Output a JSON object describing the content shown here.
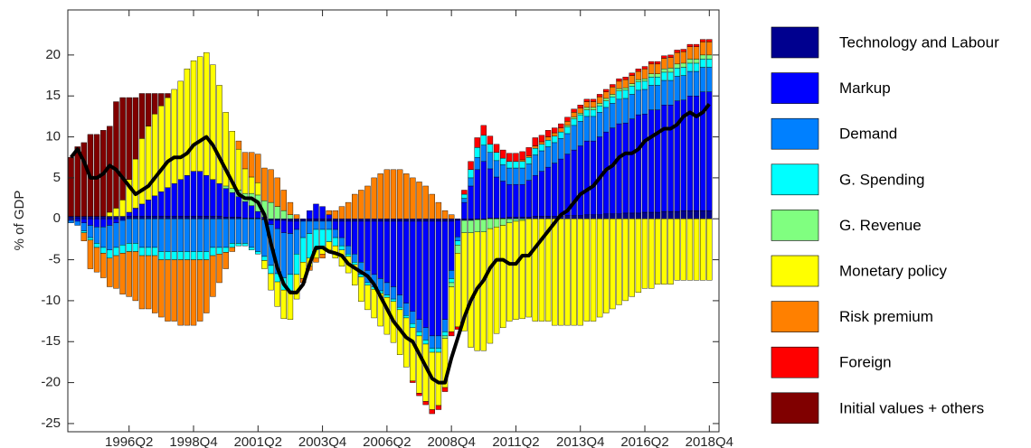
{
  "chart_data": {
    "type": "stacked-bar",
    "y_label": "% of GDP",
    "categories": [
      null,
      null,
      null,
      null,
      null,
      null,
      null,
      null,
      null,
      "1996Q2",
      null,
      null,
      null,
      null,
      null,
      null,
      null,
      null,
      null,
      "1998Q4",
      null,
      null,
      null,
      null,
      null,
      null,
      null,
      null,
      null,
      "2001Q2",
      null,
      null,
      null,
      null,
      null,
      null,
      null,
      null,
      null,
      "2003Q4",
      null,
      null,
      null,
      null,
      null,
      null,
      null,
      null,
      null,
      "2006Q2",
      null,
      null,
      null,
      null,
      null,
      null,
      null,
      null,
      null,
      "2008Q4",
      null,
      null,
      null,
      null,
      null,
      null,
      null,
      null,
      null,
      "2011Q2",
      null,
      null,
      null,
      null,
      null,
      null,
      null,
      null,
      null,
      "2013Q4",
      null,
      null,
      null,
      null,
      null,
      null,
      null,
      null,
      null,
      "2016Q2",
      null,
      null,
      null,
      null,
      null,
      null,
      null,
      null,
      null,
      "2018Q4"
    ],
    "ylim": [
      -26,
      25.5
    ],
    "yticks": [
      -25,
      -20,
      -15,
      -10,
      -5,
      0,
      5,
      10,
      15,
      20
    ],
    "series": [
      {
        "name": "Technology and Labour",
        "color": "#00008f",
        "values": [
          0.3,
          0.3,
          0.3,
          0.3,
          0.3,
          0.3,
          0.3,
          0.3,
          0.3,
          0.3,
          0.3,
          0.3,
          0.3,
          0.3,
          0.3,
          0.3,
          0.3,
          0.3,
          0.3,
          0.3,
          0.3,
          0.3,
          0.3,
          0.3,
          0.2,
          0.2,
          0.2,
          0.1,
          0.1,
          0.1,
          -0.1,
          -0.2,
          -0.2,
          -0.2,
          -0.3,
          -0.3,
          -0.3,
          -0.3,
          -0.3,
          -0.3,
          -0.3,
          -0.3,
          -0.3,
          -0.3,
          -0.3,
          -0.3,
          -0.3,
          -0.3,
          -0.3,
          -0.3,
          -0.3,
          -0.3,
          -0.3,
          -0.3,
          -0.3,
          -0.3,
          -0.3,
          -0.3,
          -0.3,
          -0.3,
          -0.2,
          -0.2,
          -0.2,
          -0.1,
          -0.1,
          0.1,
          0.1,
          0.1,
          0.2,
          0.2,
          0.2,
          0.2,
          0.3,
          0.3,
          0.3,
          0.3,
          0.3,
          0.4,
          0.4,
          0.4,
          0.5,
          0.5,
          0.5,
          0.6,
          0.6,
          0.6,
          0.7,
          0.7,
          0.7,
          0.8,
          0.8,
          0.8,
          0.9,
          0.9,
          0.9,
          1.0,
          1.0,
          1.0,
          1.0,
          1.0
        ]
      },
      {
        "name": "Markup",
        "color": "#0000ff",
        "values": [
          -0.2,
          -0.3,
          -0.5,
          -0.8,
          -1,
          -1,
          -0.8,
          -0.5,
          -0.2,
          0.5,
          1,
          1.5,
          2,
          2.5,
          3,
          3.5,
          4,
          4.5,
          5,
          5.5,
          5.5,
          5,
          4.5,
          4,
          3.5,
          3,
          2.5,
          2,
          1.5,
          0.8,
          0.2,
          -0.5,
          -1,
          -1.5,
          -1.5,
          -1,
          0,
          1,
          1.8,
          1.5,
          0.5,
          -1,
          -2,
          -3,
          -4,
          -5,
          -6,
          -6.5,
          -7,
          -7.5,
          -8,
          -9,
          -10,
          -11,
          -12,
          -13,
          -14,
          -14,
          -12,
          -6,
          -2,
          2,
          4,
          6,
          7,
          6,
          5,
          4.5,
          4,
          4,
          4,
          4.5,
          5,
          5.5,
          6,
          6.5,
          7,
          7.5,
          8,
          8.5,
          9,
          9,
          9.5,
          10,
          10.5,
          11,
          11,
          11.5,
          12,
          12,
          12.5,
          12.5,
          13,
          13,
          13.5,
          13.5,
          14,
          14,
          14.5,
          14.5
        ]
      },
      {
        "name": "Demand",
        "color": "#0080ff",
        "values": [
          -0.3,
          -0.5,
          -1,
          -1.5,
          -2,
          -2.5,
          -3,
          -3,
          -3,
          -3,
          -3,
          -3.5,
          -3.5,
          -3.5,
          -4,
          -4,
          -4,
          -4,
          -4,
          -4,
          -4,
          -4,
          -3.5,
          -3.5,
          -3.5,
          -3,
          -3,
          -3,
          -3.5,
          -4,
          -4.5,
          -5,
          -5.5,
          -5.5,
          -5,
          -3,
          -2,
          -1.5,
          -1,
          -1,
          -1,
          -1,
          -1,
          -1,
          -1,
          -1.5,
          -1.5,
          -1.5,
          -1.5,
          -1.5,
          -1.5,
          -1.5,
          -1.5,
          -1.5,
          -1.5,
          -1.5,
          -1.5,
          -1.5,
          -1.5,
          -1,
          -0.5,
          0.5,
          1,
          1.5,
          2,
          2,
          2,
          2,
          2,
          2,
          2,
          2,
          2.5,
          2.5,
          2.5,
          2.5,
          2.5,
          2.5,
          3,
          3,
          3,
          3,
          3,
          3,
          3,
          3,
          3,
          3,
          3,
          3,
          3,
          3,
          3,
          3,
          3,
          3,
          3,
          3,
          3,
          3
        ]
      },
      {
        "name": "G. Spending",
        "color": "#00ffff",
        "values": [
          0,
          0,
          -0.2,
          -0.3,
          -0.5,
          -0.7,
          -1,
          -1,
          -1,
          -1,
          -1,
          -1,
          -1,
          -1,
          -1,
          -1,
          -1,
          -1,
          -1,
          -1,
          -1,
          -1,
          -1,
          -0.8,
          -0.6,
          -0.5,
          -0.3,
          -0.3,
          -0.3,
          -0.3,
          -0.5,
          -1,
          -1,
          -1.5,
          -2,
          -2.5,
          -3,
          -3,
          -2.5,
          -2,
          -1.5,
          -1,
          -0.5,
          -0.3,
          -0.3,
          -0.3,
          -0.3,
          -0.3,
          -0.3,
          -0.3,
          -0.3,
          -0.3,
          -0.3,
          -0.5,
          -0.5,
          -0.5,
          -0.5,
          -0.5,
          -0.5,
          -0.5,
          -0.5,
          0.5,
          1,
          1.2,
          1.2,
          1,
          1,
          0.8,
          0.8,
          0.8,
          0.8,
          0.8,
          0.8,
          0.8,
          0.8,
          0.8,
          0.8,
          0.8,
          0.8,
          0.8,
          0.8,
          0.8,
          0.8,
          0.8,
          0.8,
          1,
          1,
          1,
          1,
          1,
          1,
          1,
          1,
          1,
          1,
          1,
          1,
          1,
          1,
          1
        ]
      },
      {
        "name": "G. Revenue",
        "color": "#80ff80",
        "values": [
          0,
          0,
          0,
          0,
          0,
          0,
          0,
          0,
          0,
          0,
          0,
          0,
          0,
          0,
          0,
          0,
          0,
          0,
          0,
          0,
          0,
          0,
          0,
          0,
          0.3,
          0.5,
          0.8,
          1,
          1.5,
          2,
          2,
          2,
          1.5,
          1,
          0.5,
          0,
          0,
          0,
          0,
          0,
          0,
          0,
          0,
          0,
          0,
          0,
          0,
          0,
          0,
          0,
          0,
          0,
          0,
          0,
          0,
          0,
          0,
          0,
          -0.3,
          -0.5,
          -1,
          -1.5,
          -1.5,
          -1.5,
          -1.5,
          -1.2,
          -1,
          -0.8,
          -0.5,
          -0.3,
          -0.2,
          0,
          0,
          0,
          0,
          0,
          0,
          0.2,
          0.2,
          0.2,
          0.3,
          0.3,
          0.3,
          0.3,
          0.3,
          0.3,
          0.3,
          0.3,
          0.3,
          0.3,
          0.4,
          0.4,
          0.4,
          0.5,
          0.5,
          0.5,
          0.5,
          0.5,
          0.5,
          0.5
        ]
      },
      {
        "name": "Monetary policy",
        "color": "#ffff00",
        "values": [
          0,
          0,
          0,
          0,
          0,
          0,
          0.5,
          1,
          2,
          4,
          6,
          8,
          9,
          10,
          10.5,
          11,
          11.5,
          12,
          13,
          13.5,
          14,
          15,
          14,
          12,
          9,
          7,
          5,
          3,
          2,
          1.5,
          -1,
          -2,
          -3,
          -3.5,
          -3.5,
          -3,
          -2,
          -1,
          -1,
          -1,
          -1,
          -1.5,
          -2,
          -2,
          -2.5,
          -3,
          -3,
          -3.5,
          -4,
          -4.5,
          -5,
          -5.5,
          -6,
          -6.5,
          -7,
          -7,
          -7,
          -6.5,
          -6,
          -5.5,
          -9,
          -12,
          -14,
          -14.5,
          -14.5,
          -14,
          -13,
          -12.5,
          -12,
          -12,
          -12,
          -12,
          -12.5,
          -12.5,
          -12.5,
          -13,
          -13,
          -13,
          -13,
          -13,
          -12.5,
          -12.5,
          -12,
          -11.5,
          -11,
          -10.5,
          -10,
          -9.5,
          -9,
          -8.5,
          -8.5,
          -8,
          -8,
          -8,
          -7.5,
          -7.5,
          -7.5,
          -7.5,
          -7.5,
          -7.5
        ]
      },
      {
        "name": "Risk premium",
        "color": "#ff8000",
        "values": [
          0,
          0,
          -1,
          -3.5,
          -3,
          -3,
          -3.5,
          -4,
          -5,
          -5.5,
          -6,
          -6.5,
          -6.5,
          -7,
          -7,
          -7.5,
          -7.5,
          -8,
          -8,
          -8,
          -7.5,
          -6.5,
          -5,
          -3.5,
          -2,
          -0.5,
          1,
          2,
          3,
          3.5,
          4,
          4,
          3.5,
          2.5,
          1.5,
          0.5,
          -0.5,
          -0.5,
          -0.5,
          -0.5,
          0.5,
          1,
          1.5,
          2,
          3,
          3.5,
          4,
          5,
          5.5,
          6,
          6,
          6,
          5.5,
          5,
          4.5,
          4,
          3,
          2,
          1,
          0.5,
          0,
          0,
          0,
          0,
          0,
          0,
          0,
          0,
          0,
          0,
          0.2,
          0.2,
          0.3,
          0.3,
          0.4,
          0.4,
          0.5,
          0.5,
          0.6,
          0.6,
          0.7,
          0.7,
          0.8,
          0.8,
          0.9,
          0.9,
          1,
          1,
          1,
          1.2,
          1.2,
          1.2,
          1.3,
          1.3,
          1.4,
          1.4,
          1.5,
          1.5,
          1.6,
          1.6
        ]
      },
      {
        "name": "Foreign",
        "color": "#ff0000",
        "values": [
          0,
          0,
          0,
          0,
          0,
          0,
          0,
          0,
          0,
          0,
          0,
          0,
          0,
          0,
          0,
          0,
          0,
          0,
          0,
          0,
          0,
          0,
          0,
          0,
          0,
          0,
          0,
          0,
          0,
          0,
          0,
          0,
          0,
          0,
          0,
          0,
          0,
          0,
          0,
          0,
          0,
          0,
          0,
          0,
          0,
          0,
          0,
          0,
          0,
          0,
          0,
          0,
          0,
          -0.2,
          -0.3,
          -0.4,
          -0.5,
          -0.5,
          -0.5,
          -0.5,
          -0.3,
          0.5,
          1,
          1.2,
          1.2,
          1,
          1,
          1,
          1,
          1,
          1,
          1,
          1,
          0.8,
          0.8,
          0.6,
          0.5,
          0.5,
          0.4,
          0.4,
          0.3,
          0.3,
          0.3,
          0.3,
          0.3,
          0.3,
          0.3,
          0.3,
          0.3,
          0.3,
          0.3,
          0.3,
          0.3,
          0.3,
          0.3,
          0.3,
          0.3,
          0.3,
          0.3,
          0.3
        ]
      },
      {
        "name": "Initial values + others",
        "color": "#800000",
        "values": [
          7.2,
          8.5,
          9,
          10,
          10,
          10.5,
          10.5,
          13,
          12.5,
          10,
          7.5,
          5.5,
          4,
          2.5,
          1.5,
          0.5,
          0,
          0,
          0,
          0,
          0,
          0,
          0,
          0,
          0,
          0,
          0,
          0,
          0,
          0,
          0,
          0,
          0,
          0,
          0,
          0,
          0,
          0,
          0,
          0,
          0,
          0,
          0,
          0,
          0,
          0,
          0,
          0,
          0,
          0,
          0,
          0,
          0,
          0,
          0,
          0,
          0,
          0,
          0,
          0,
          0,
          0,
          0,
          0,
          0,
          0,
          0,
          0,
          0,
          0,
          0,
          0,
          0,
          0,
          0,
          0,
          0,
          0,
          0,
          0,
          0,
          0,
          0,
          0,
          0,
          0,
          0,
          0,
          0,
          0,
          0,
          0,
          0,
          0,
          0,
          0,
          0,
          0,
          0,
          0
        ]
      }
    ],
    "line": {
      "color": "#000000",
      "values": [
        7.5,
        8.5,
        7,
        5,
        5,
        5.5,
        6.5,
        6,
        5,
        4,
        3,
        3.5,
        4,
        5,
        6,
        7,
        7.5,
        7.5,
        8,
        9,
        9.5,
        10,
        9,
        7.5,
        6,
        4.5,
        3,
        2.5,
        2.5,
        2,
        0.5,
        -3,
        -6,
        -8,
        -9,
        -9,
        -8,
        -5.5,
        -3.5,
        -3.5,
        -4,
        -4.2,
        -4.5,
        -5.5,
        -6,
        -6.5,
        -7,
        -8,
        -9.5,
        -11,
        -12.5,
        -13.5,
        -14.5,
        -15,
        -16.5,
        -18,
        -19.5,
        -20,
        -20,
        -17,
        -14.5,
        -12,
        -10,
        -8.5,
        -7.5,
        -6,
        -5,
        -5,
        -5.5,
        -5.5,
        -4.5,
        -4.5,
        -3.5,
        -2.5,
        -1.5,
        -0.5,
        0.5,
        1,
        2,
        3,
        3.5,
        4,
        5,
        6,
        6.5,
        7.5,
        8,
        8,
        8.5,
        9.5,
        10,
        10.5,
        11,
        11,
        11.5,
        12.5,
        13,
        12.5,
        13,
        14
      ]
    }
  }
}
